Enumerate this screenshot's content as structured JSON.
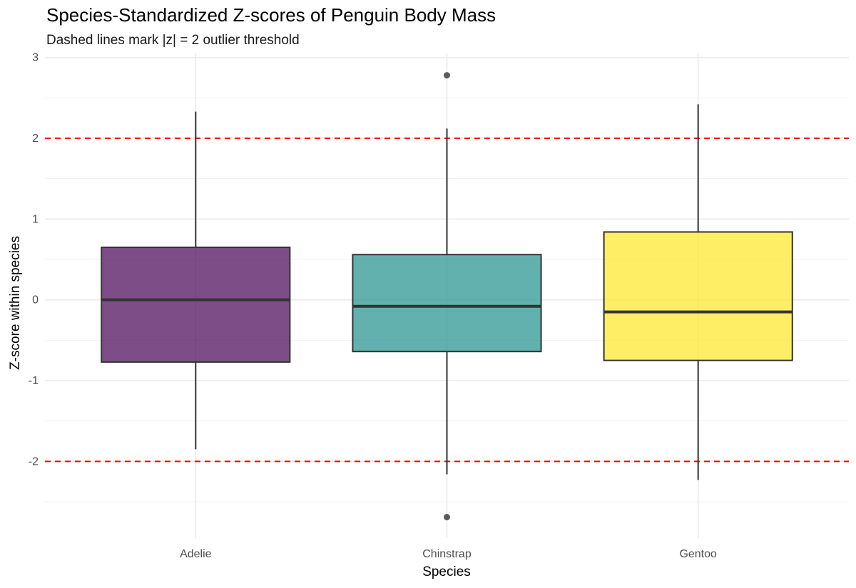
{
  "header": {
    "title": "Species-Standardized Z-scores of Penguin Body Mass",
    "subtitle": "Dashed lines mark |z| = 2 outlier threshold"
  },
  "chart_data": {
    "type": "box",
    "title": "Species-Standardized Z-scores of Penguin Body Mass",
    "subtitle": "Dashed lines mark |z| = 2 outlier threshold",
    "xlabel": "Species",
    "ylabel": "Z-score within species",
    "categories": [
      "Adelie",
      "Chinstrap",
      "Gentoo"
    ],
    "ylim": [
      -2.95,
      3.05
    ],
    "yticks": [
      -2,
      -1,
      0,
      1,
      2,
      3
    ],
    "grid": true,
    "legend": "none",
    "reference_lines": [
      {
        "y": 2,
        "style": "dashed",
        "color": "#ff0000"
      },
      {
        "y": -2,
        "style": "dashed",
        "color": "#ff0000"
      }
    ],
    "boxes": [
      {
        "category": "Adelie",
        "whisker_low": -1.85,
        "q1": -0.77,
        "median": 0.0,
        "q3": 0.65,
        "whisker_high": 2.33,
        "outliers": [],
        "fill": "#440154"
      },
      {
        "category": "Chinstrap",
        "whisker_low": -2.16,
        "q1": -0.64,
        "median": -0.08,
        "q3": 0.56,
        "whisker_high": 2.12,
        "outliers": [
          2.78,
          -2.69
        ],
        "fill": "#21908C"
      },
      {
        "category": "Gentoo",
        "whisker_low": -2.23,
        "q1": -0.75,
        "median": -0.15,
        "q3": 0.84,
        "whisker_high": 2.42,
        "outliers": [],
        "fill": "#FDE725"
      }
    ]
  }
}
